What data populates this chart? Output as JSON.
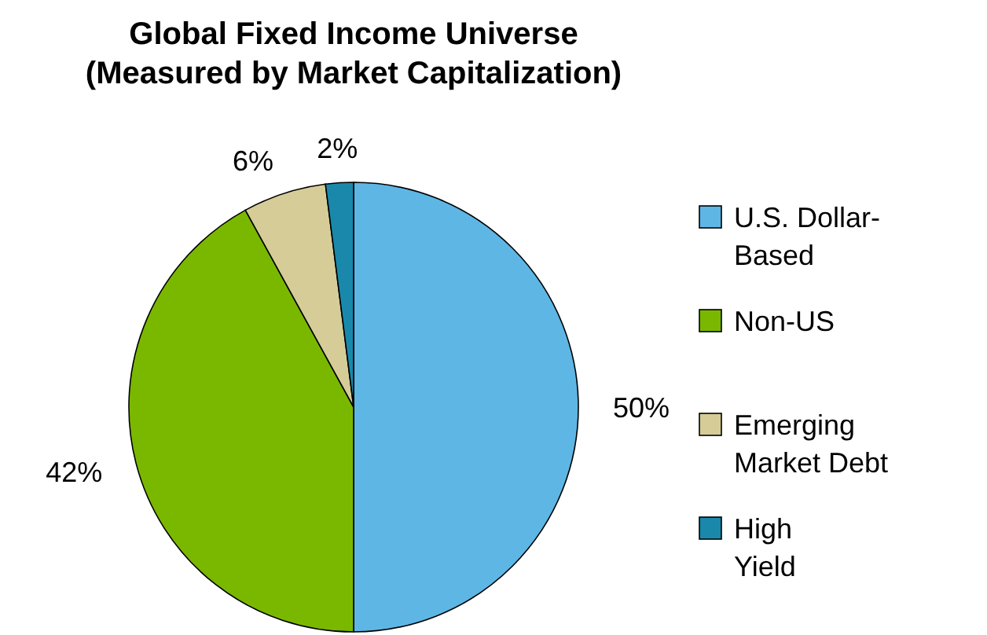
{
  "chart_data": {
    "type": "pie",
    "title": "Global Fixed Income Universe\n(Measured by Market Capitalization)",
    "categories": [
      "U.S. Dollar-\nBased",
      "Non-US",
      "Emerging\nMarket Debt",
      "High\nYield"
    ],
    "values": [
      50,
      42,
      6,
      2
    ],
    "colors": [
      "#5eb6e4",
      "#7ab800",
      "#d5cc98",
      "#1a88ab"
    ],
    "value_labels": [
      "50%",
      "42%",
      "6%",
      "2%"
    ],
    "legend": "right"
  }
}
